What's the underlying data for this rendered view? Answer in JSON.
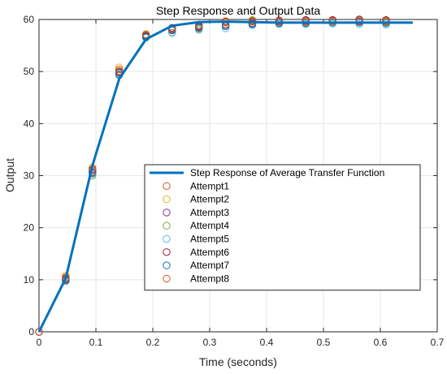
{
  "chart_data": {
    "type": "line",
    "title": "Step Response and Output Data",
    "xlabel": "Time (seconds)",
    "ylabel": "Output",
    "xlim": [
      0,
      0.7
    ],
    "ylim": [
      0,
      60
    ],
    "xticks": [
      "0",
      "0.1",
      "0.2",
      "0.3",
      "0.4",
      "0.5",
      "0.6",
      "0.7"
    ],
    "yticks": [
      "0",
      "10",
      "20",
      "30",
      "40",
      "50",
      "60"
    ],
    "grid": true,
    "legend_position": "lower-right inside plot",
    "colors": {
      "line": "#0072BD",
      "grid": "#e6e6e6",
      "axes": "#262626"
    },
    "series": [
      {
        "name": "Step Response of Average Transfer Function",
        "style": "line",
        "color": "#0072BD",
        "x": [
          0,
          0.047,
          0.094,
          0.141,
          0.188,
          0.234,
          0.281,
          0.328,
          0.375,
          0.422,
          0.469,
          0.516,
          0.563,
          0.61,
          0.657
        ],
        "y": [
          0,
          10.3,
          32.0,
          48.6,
          56.2,
          58.8,
          59.5,
          59.6,
          59.5,
          59.4,
          59.4,
          59.4,
          59.4,
          59.4,
          59.4
        ]
      },
      {
        "name": "Attempt1",
        "style": "marker",
        "color": "#D95319",
        "x": [
          0,
          0.047,
          0.094,
          0.141,
          0.188,
          0.234,
          0.281,
          0.328,
          0.375,
          0.422,
          0.469,
          0.516,
          0.563,
          0.61
        ],
        "y": [
          0,
          10.2,
          30.8,
          50.1,
          56.9,
          58.1,
          58.6,
          59.1,
          59.3,
          59.4,
          59.4,
          59.5,
          59.5,
          59.5
        ]
      },
      {
        "name": "Attempt2",
        "style": "marker",
        "color": "#EDB120",
        "x": [
          0,
          0.047,
          0.094,
          0.141,
          0.188,
          0.234,
          0.281,
          0.328,
          0.375,
          0.422,
          0.469,
          0.516,
          0.563,
          0.61
        ],
        "y": [
          0,
          10.8,
          31.6,
          50.8,
          57.2,
          58.3,
          59.0,
          59.7,
          59.8,
          59.6,
          59.5,
          59.6,
          59.5,
          59.4
        ]
      },
      {
        "name": "Attempt3",
        "style": "marker",
        "color": "#7E2F8E",
        "x": [
          0,
          0.047,
          0.094,
          0.141,
          0.188,
          0.234,
          0.281,
          0.328,
          0.375,
          0.422,
          0.469,
          0.516,
          0.563,
          0.61
        ],
        "y": [
          0,
          10.0,
          30.5,
          49.8,
          56.7,
          58.0,
          58.4,
          58.9,
          59.2,
          59.6,
          59.7,
          59.8,
          59.7,
          59.7
        ]
      },
      {
        "name": "Attempt4",
        "style": "marker",
        "color": "#77AC30",
        "x": [
          0,
          0.047,
          0.094,
          0.141,
          0.188,
          0.234,
          0.281,
          0.328,
          0.375,
          0.422,
          0.469,
          0.516,
          0.563,
          0.61
        ],
        "y": [
          0,
          10.4,
          30.0,
          49.3,
          57.0,
          57.5,
          58.2,
          59.4,
          59.9,
          59.8,
          59.9,
          59.9,
          59.9,
          59.8
        ]
      },
      {
        "name": "Attempt5",
        "style": "marker",
        "color": "#4DBEEE",
        "x": [
          0,
          0.047,
          0.094,
          0.141,
          0.188,
          0.234,
          0.281,
          0.328,
          0.375,
          0.422,
          0.469,
          0.516,
          0.563,
          0.61
        ],
        "y": [
          0,
          9.9,
          30.3,
          49.6,
          56.5,
          57.4,
          58.0,
          58.3,
          58.9,
          59.1,
          59.1,
          59.2,
          59.1,
          59.0
        ]
      },
      {
        "name": "Attempt6",
        "style": "marker",
        "color": "#A2142F",
        "x": [
          0,
          0.047,
          0.094,
          0.141,
          0.188,
          0.234,
          0.281,
          0.328,
          0.375,
          0.422,
          0.469,
          0.516,
          0.563,
          0.61
        ],
        "y": [
          0,
          10.1,
          31.1,
          49.9,
          56.8,
          58.4,
          58.7,
          59.6,
          59.6,
          59.8,
          59.9,
          59.9,
          60.0,
          59.9
        ]
      },
      {
        "name": "Attempt7",
        "style": "marker",
        "color": "#0072BD",
        "x": [
          0,
          0.047,
          0.094,
          0.141,
          0.188,
          0.234,
          0.281,
          0.328,
          0.375,
          0.422,
          0.469,
          0.516,
          0.563,
          0.61
        ],
        "y": [
          0,
          9.8,
          30.6,
          49.4,
          56.6,
          57.9,
          58.5,
          58.7,
          59.1,
          59.3,
          59.3,
          59.4,
          59.4,
          59.3
        ]
      },
      {
        "name": "Attempt8",
        "style": "marker",
        "color": "#D95319",
        "x": [
          0,
          0.047,
          0.094,
          0.141,
          0.188,
          0.234,
          0.281,
          0.328,
          0.375,
          0.422,
          0.469,
          0.516,
          0.563,
          0.61
        ],
        "y": [
          0,
          10.5,
          31.3,
          50.4,
          57.1,
          58.2,
          58.9,
          59.5,
          59.7,
          59.7,
          59.6,
          59.7,
          59.6,
          59.6
        ]
      }
    ]
  }
}
